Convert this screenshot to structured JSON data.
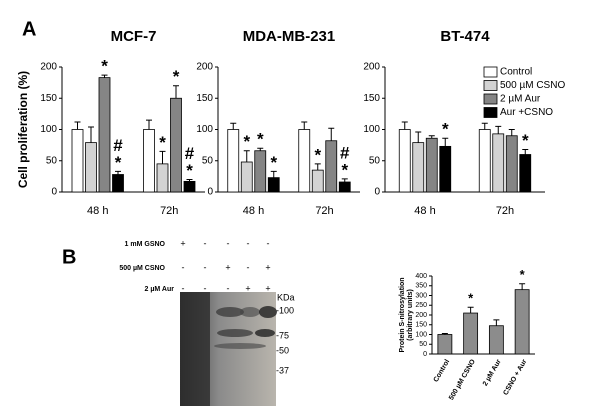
{
  "panel_labels": [
    "A",
    "B"
  ],
  "chart_data": [
    {
      "type": "bar",
      "title": "MCF-7",
      "ylabel": "Cell proliferation (%)",
      "categories": [
        "48 h",
        "72h"
      ],
      "ylim": [
        0,
        200
      ],
      "yticks": [
        0,
        50,
        100,
        150,
        200
      ],
      "series": [
        {
          "name": "Control",
          "color": "#ffffff",
          "values": [
            100,
            100
          ],
          "errors": [
            12,
            15
          ],
          "annotations": [
            null,
            null
          ]
        },
        {
          "name": "500 µM CSNO",
          "color": "#d3d3d3",
          "values": [
            79,
            45
          ],
          "errors": [
            25,
            20
          ],
          "annotations": [
            null,
            [
              "*"
            ]
          ]
        },
        {
          "name": "2 µM Aur",
          "color": "#858585",
          "values": [
            183,
            150
          ],
          "errors": [
            4,
            20
          ],
          "annotations": [
            [
              "*"
            ],
            [
              "*"
            ]
          ]
        },
        {
          "name": "Aur +CSNO",
          "color": "#000000",
          "values": [
            28,
            17
          ],
          "errors": [
            5,
            3
          ],
          "annotations": [
            [
              "#",
              "*"
            ],
            [
              "#",
              "*"
            ]
          ]
        }
      ]
    },
    {
      "type": "bar",
      "title": "MDA-MB-231",
      "categories": [
        "48 h",
        "72h"
      ],
      "ylim": [
        0,
        200
      ],
      "yticks": [
        0,
        50,
        100,
        150,
        200
      ],
      "series": [
        {
          "name": "Control",
          "color": "#ffffff",
          "values": [
            100,
            100
          ],
          "errors": [
            10,
            12
          ],
          "annotations": [
            null,
            null
          ]
        },
        {
          "name": "500 µM CSNO",
          "color": "#d3d3d3",
          "values": [
            48,
            35
          ],
          "errors": [
            18,
            10
          ],
          "annotations": [
            [
              "*"
            ],
            [
              "*"
            ]
          ]
        },
        {
          "name": "2 µM Aur",
          "color": "#858585",
          "values": [
            66,
            82
          ],
          "errors": [
            4,
            20
          ],
          "annotations": [
            [
              "*"
            ],
            null
          ]
        },
        {
          "name": "Aur +CSNO",
          "color": "#000000",
          "values": [
            23,
            16
          ],
          "errors": [
            10,
            5
          ],
          "annotations": [
            [
              "*"
            ],
            [
              "#",
              "*"
            ]
          ]
        }
      ]
    },
    {
      "type": "bar",
      "title": "BT-474",
      "show_legend": true,
      "categories": [
        "48 h",
        "72h"
      ],
      "ylim": [
        0,
        200
      ],
      "yticks": [
        0,
        50,
        100,
        150,
        200
      ],
      "series": [
        {
          "name": "Control",
          "color": "#ffffff",
          "values": [
            100,
            100
          ],
          "errors": [
            12,
            10
          ],
          "annotations": [
            null,
            null
          ]
        },
        {
          "name": "500 µM CSNO",
          "color": "#d3d3d3",
          "values": [
            79,
            93
          ],
          "errors": [
            17,
            12
          ],
          "annotations": [
            null,
            null
          ]
        },
        {
          "name": "2 µM Aur",
          "color": "#858585",
          "values": [
            86,
            90
          ],
          "errors": [
            4,
            10
          ],
          "annotations": [
            null,
            null
          ]
        },
        {
          "name": "Aur +CSNO",
          "color": "#000000",
          "values": [
            73,
            60
          ],
          "errors": [
            13,
            8
          ],
          "annotations": [
            [
              "*"
            ],
            [
              "*"
            ]
          ]
        }
      ]
    },
    {
      "type": "bar",
      "ylabel": [
        "Protein S-nitrosylation",
        "(arbitrary units)"
      ],
      "rotate_labels": true,
      "categories": [
        "Control",
        "500 µM CSNO",
        "2 µM Aur",
        "CSNO + Aur"
      ],
      "color": "#8c8c8c",
      "values": [
        100,
        210,
        145,
        330
      ],
      "errors": [
        5,
        30,
        30,
        30
      ],
      "annotations": [
        null,
        [
          "*"
        ],
        null,
        [
          "*"
        ]
      ],
      "ylim": [
        0,
        400
      ],
      "yticks": [
        0,
        50,
        100,
        150,
        200,
        250,
        300,
        350,
        400
      ]
    }
  ],
  "treatments": [
    {
      "label": "1 mM GSNO",
      "signs": [
        "+",
        "-",
        "-",
        "-",
        "-"
      ]
    },
    {
      "label": "500 µM CSNO",
      "signs": [
        "-",
        "-",
        "+",
        "-",
        "+"
      ]
    },
    {
      "label": "2 µM Aur",
      "signs": [
        "-",
        "-",
        "-",
        "+",
        "+"
      ]
    }
  ],
  "markers": {
    "unit": "KDa",
    "labels": [
      "-100",
      "-75",
      "-50",
      "-37"
    ]
  }
}
